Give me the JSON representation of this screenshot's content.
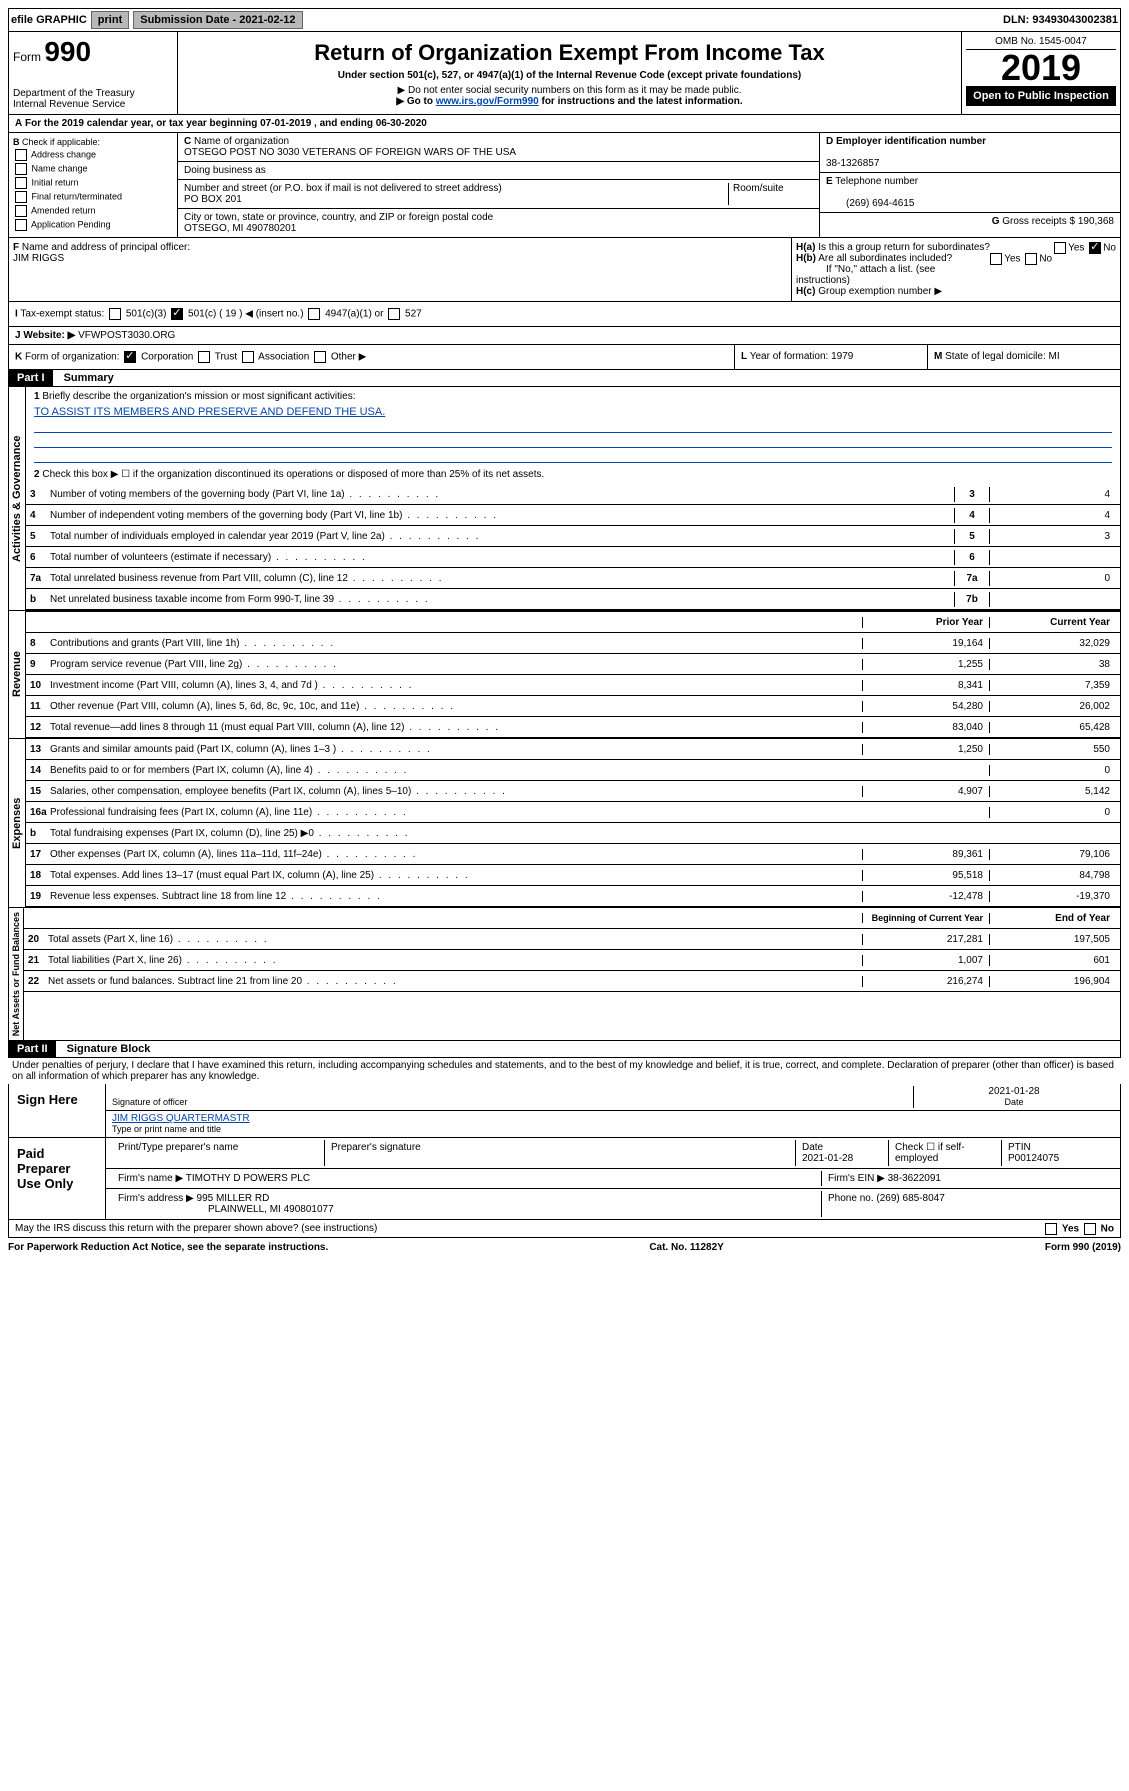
{
  "topbar": {
    "efile": "efile GRAPHIC",
    "print": "print",
    "submission": "Submission Date - 2021-02-12",
    "dln": "DLN: 93493043002381"
  },
  "header": {
    "form_prefix": "Form",
    "form_num": "990",
    "dept": "Department of the Treasury\nInternal Revenue Service",
    "title": "Return of Organization Exempt From Income Tax",
    "subtitle": "Under section 501(c), 527, or 4947(a)(1) of the Internal Revenue Code (except private foundations)",
    "note1": "▶ Do not enter social security numbers on this form as it may be made public.",
    "note2_pre": "▶ Go to ",
    "note2_link": "www.irs.gov/Form990",
    "note2_post": " for instructions and the latest information.",
    "omb": "OMB No. 1545-0047",
    "year": "2019",
    "open": "Open to Public Inspection"
  },
  "A": {
    "text": "For the 2019 calendar year, or tax year beginning 07-01-2019    , and ending 06-30-2020"
  },
  "B": {
    "label": "Check if applicable:",
    "opts": [
      "Address change",
      "Name change",
      "Initial return",
      "Final return/terminated",
      "Amended return",
      "Application Pending"
    ]
  },
  "C": {
    "name_label": "Name of organization",
    "name": "OTSEGO POST NO 3030 VETERANS OF FOREIGN WARS OF THE USA",
    "dba_label": "Doing business as",
    "addr_label": "Number and street (or P.O. box if mail is not delivered to street address)",
    "room": "Room/suite",
    "addr": "PO BOX 201",
    "city_label": "City or town, state or province, country, and ZIP or foreign postal code",
    "city": "OTSEGO, MI  490780201"
  },
  "D": {
    "label": "Employer identification number",
    "val": "38-1326857"
  },
  "E": {
    "label": "Telephone number",
    "val": "(269) 694-4615"
  },
  "G": {
    "label": "Gross receipts $",
    "val": "190,368"
  },
  "F": {
    "label": "Name and address of principal officer:",
    "val": "JIM RIGGS"
  },
  "H": {
    "a": "Is this a group return for subordinates?",
    "b": "Are all subordinates included?",
    "b_note": "If \"No,\" attach a list. (see instructions)",
    "c": "Group exemption number ▶"
  },
  "I": {
    "label": "Tax-exempt status:",
    "opt1": "501(c)(3)",
    "opt2": "501(c) ( 19 ) ◀ (insert no.)",
    "opt3": "4947(a)(1) or",
    "opt4": "527"
  },
  "J": {
    "label": "Website: ▶",
    "val": "VFWPOST3030.ORG"
  },
  "K": {
    "label": "Form of organization:",
    "opts": [
      "Corporation",
      "Trust",
      "Association",
      "Other ▶"
    ]
  },
  "L": {
    "label": "Year of formation:",
    "val": "1979"
  },
  "M": {
    "label": "State of legal domicile:",
    "val": "MI"
  },
  "part1": {
    "label": "Part I",
    "title": "Summary"
  },
  "summary": {
    "line1": "Briefly describe the organization's mission or most significant activities:",
    "mission": "TO ASSIST ITS MEMBERS AND PRESERVE AND DEFEND THE USA.",
    "line2": "Check this box ▶ ☐  if the organization discontinued its operations or disposed of more than 25% of its net assets.",
    "lines_gov": [
      {
        "n": "3",
        "d": "Number of voting members of the governing body (Part VI, line 1a)",
        "box": "3",
        "v": "4"
      },
      {
        "n": "4",
        "d": "Number of independent voting members of the governing body (Part VI, line 1b)",
        "box": "4",
        "v": "4"
      },
      {
        "n": "5",
        "d": "Total number of individuals employed in calendar year 2019 (Part V, line 2a)",
        "box": "5",
        "v": "3"
      },
      {
        "n": "6",
        "d": "Total number of volunteers (estimate if necessary)",
        "box": "6",
        "v": ""
      },
      {
        "n": "7a",
        "d": "Total unrelated business revenue from Part VIII, column (C), line 12",
        "box": "7a",
        "v": "0"
      },
      {
        "n": "b",
        "d": "Net unrelated business taxable income from Form 990-T, line 39",
        "box": "7b",
        "v": ""
      }
    ],
    "col_prior": "Prior Year",
    "col_current": "Current Year",
    "lines_rev": [
      {
        "n": "8",
        "d": "Contributions and grants (Part VIII, line 1h)",
        "p": "19,164",
        "c": "32,029"
      },
      {
        "n": "9",
        "d": "Program service revenue (Part VIII, line 2g)",
        "p": "1,255",
        "c": "38"
      },
      {
        "n": "10",
        "d": "Investment income (Part VIII, column (A), lines 3, 4, and 7d )",
        "p": "8,341",
        "c": "7,359"
      },
      {
        "n": "11",
        "d": "Other revenue (Part VIII, column (A), lines 5, 6d, 8c, 9c, 10c, and 11e)",
        "p": "54,280",
        "c": "26,002"
      },
      {
        "n": "12",
        "d": "Total revenue—add lines 8 through 11 (must equal Part VIII, column (A), line 12)",
        "p": "83,040",
        "c": "65,428"
      }
    ],
    "lines_exp": [
      {
        "n": "13",
        "d": "Grants and similar amounts paid (Part IX, column (A), lines 1–3 )",
        "p": "1,250",
        "c": "550"
      },
      {
        "n": "14",
        "d": "Benefits paid to or for members (Part IX, column (A), line 4)",
        "p": "",
        "c": "0"
      },
      {
        "n": "15",
        "d": "Salaries, other compensation, employee benefits (Part IX, column (A), lines 5–10)",
        "p": "4,907",
        "c": "5,142"
      },
      {
        "n": "16a",
        "d": "Professional fundraising fees (Part IX, column (A), line 11e)",
        "p": "",
        "c": "0"
      },
      {
        "n": "b",
        "d": "Total fundraising expenses (Part IX, column (D), line 25) ▶0",
        "p": "",
        "c": ""
      },
      {
        "n": "17",
        "d": "Other expenses (Part IX, column (A), lines 11a–11d, 11f–24e)",
        "p": "89,361",
        "c": "79,106"
      },
      {
        "n": "18",
        "d": "Total expenses. Add lines 13–17 (must equal Part IX, column (A), line 25)",
        "p": "95,518",
        "c": "84,798"
      },
      {
        "n": "19",
        "d": "Revenue less expenses. Subtract line 18 from line 12",
        "p": "-12,478",
        "c": "-19,370"
      }
    ],
    "col_begin": "Beginning of Current Year",
    "col_end": "End of Year",
    "lines_net": [
      {
        "n": "20",
        "d": "Total assets (Part X, line 16)",
        "p": "217,281",
        "c": "197,505"
      },
      {
        "n": "21",
        "d": "Total liabilities (Part X, line 26)",
        "p": "1,007",
        "c": "601"
      },
      {
        "n": "22",
        "d": "Net assets or fund balances. Subtract line 21 from line 20",
        "p": "216,274",
        "c": "196,904"
      }
    ],
    "side_gov": "Activities & Governance",
    "side_rev": "Revenue",
    "side_exp": "Expenses",
    "side_net": "Net Assets or Fund Balances"
  },
  "part2": {
    "label": "Part II",
    "title": "Signature Block",
    "perjury": "Under penalties of perjury, I declare that I have examined this return, including accompanying schedules and statements, and to the best of my knowledge and belief, it is true, correct, and complete. Declaration of preparer (other than officer) is based on all information of which preparer has any knowledge.",
    "sign_here": "Sign Here",
    "sig_officer": "Signature of officer",
    "sig_date": "2021-01-28",
    "date_label": "Date",
    "sig_name": "JIM RIGGS  QUARTERMASTR",
    "sig_name_label": "Type or print name and title",
    "paid": "Paid Preparer Use Only",
    "prep_name_label": "Print/Type preparer's name",
    "prep_sig_label": "Preparer's signature",
    "prep_date_label": "Date",
    "prep_date": "2021-01-28",
    "check_label": "Check ☐ if self-employed",
    "ptin_label": "PTIN",
    "ptin": "P00124075",
    "firm_name_label": "Firm's name    ▶",
    "firm_name": "TIMOTHY D POWERS PLC",
    "firm_ein_label": "Firm's EIN ▶",
    "firm_ein": "38-3622091",
    "firm_addr_label": "Firm's address ▶",
    "firm_addr": "995 MILLER RD",
    "firm_city": "PLAINWELL, MI  490801077",
    "phone_label": "Phone no.",
    "phone": "(269) 685-8047",
    "discuss": "May the IRS discuss this return with the preparer shown above? (see instructions)"
  },
  "footer": {
    "paperwork": "For Paperwork Reduction Act Notice, see the separate instructions.",
    "cat": "Cat. No. 11282Y",
    "form": "Form 990 (2019)"
  }
}
